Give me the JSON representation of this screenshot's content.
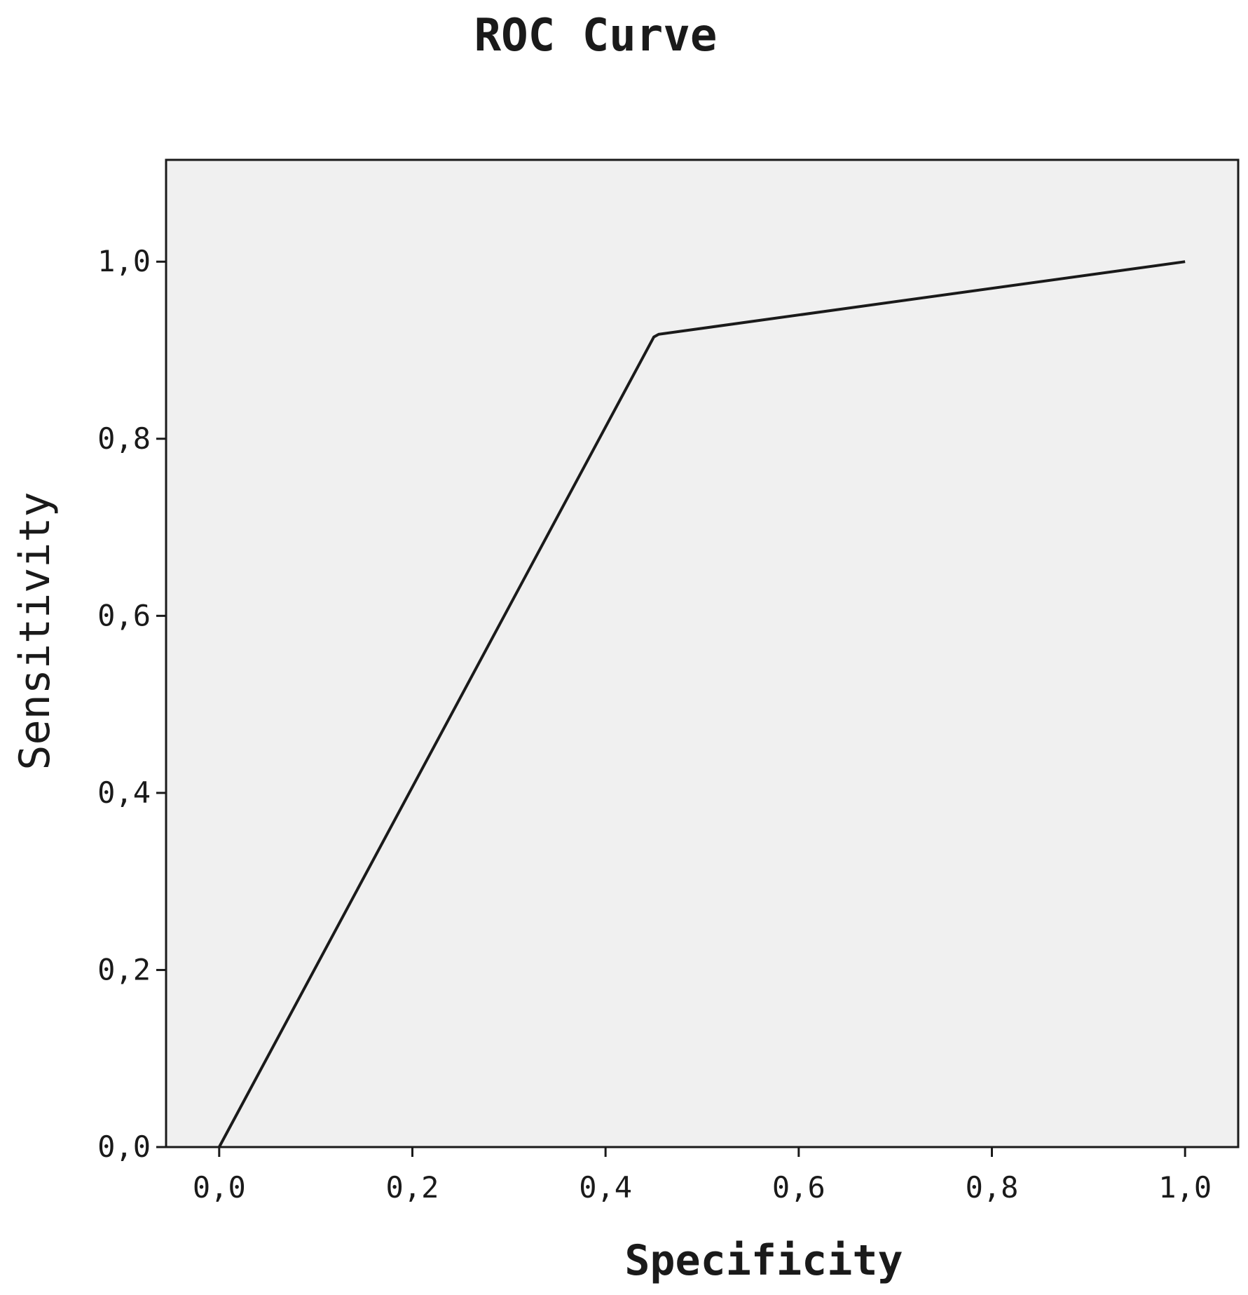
{
  "chart_data": {
    "type": "line",
    "title": "ROC Curve",
    "xlabel": "Specificity",
    "ylabel": "Sensitivity",
    "xlim": [
      -0.055,
      1.055
    ],
    "ylim": [
      0.0,
      1.115
    ],
    "x_ticks": [
      0.0,
      0.2,
      0.4,
      0.6,
      0.8,
      1.0
    ],
    "y_ticks": [
      0.0,
      0.2,
      0.4,
      0.6,
      0.8,
      1.0
    ],
    "x_tick_labels": [
      "0,0",
      "0,2",
      "0,4",
      "0,6",
      "0,8",
      "1,0"
    ],
    "y_tick_labels": [
      "0,0",
      "0,2",
      "0,4",
      "0,6",
      "0,8",
      "1,0"
    ],
    "grid": false,
    "series": [
      {
        "x": [
          0.0,
          0.45,
          0.455,
          1.0
        ],
        "y": [
          0.0,
          0.915,
          0.918,
          1.0
        ]
      }
    ],
    "colors": {
      "plot_background": "#f0f0f0",
      "line": "#1a1a1a",
      "axis": "#1a1a1a"
    }
  }
}
